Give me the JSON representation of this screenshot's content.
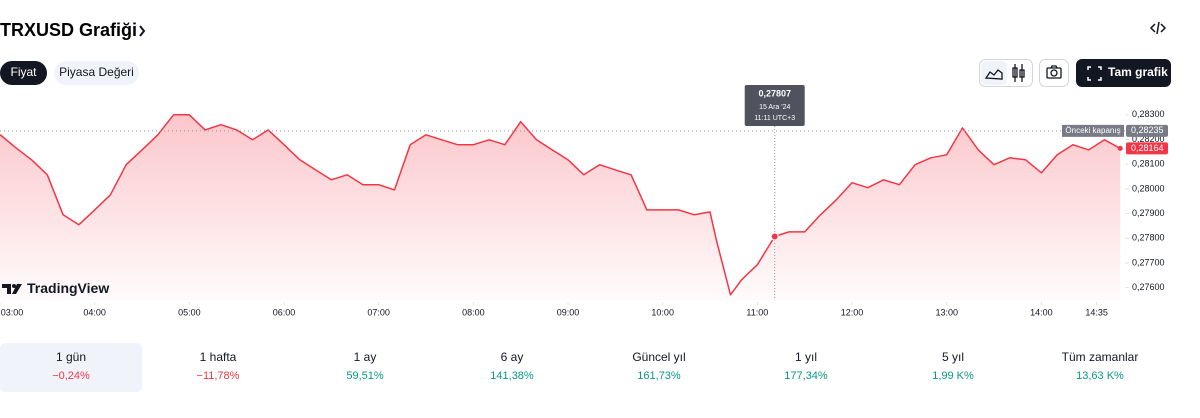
{
  "header": {
    "title": "TRXUSD Grafiği",
    "tabs": [
      "Fiyat",
      "Piyasa Değeri"
    ],
    "full_chart": "Tam grafik"
  },
  "chart_data": {
    "type": "area",
    "color": "#f23645",
    "x": [
      180,
      190,
      200,
      210,
      220,
      230,
      240,
      250,
      260,
      270,
      280,
      290,
      300,
      310,
      320,
      330,
      340,
      350,
      360,
      370,
      380,
      390,
      400,
      410,
      420,
      430,
      440,
      450,
      460,
      470,
      480,
      490,
      500,
      510,
      520,
      530,
      540,
      550,
      560,
      570,
      580,
      590,
      600,
      610,
      620,
      630,
      634,
      638,
      643,
      650,
      660,
      671,
      680,
      690,
      700,
      710,
      720,
      730,
      740,
      750,
      760,
      770,
      780,
      790,
      800,
      810,
      820,
      830,
      840,
      850,
      860,
      870,
      880,
      890
    ],
    "values": [
      0.2822,
      0.28167,
      0.28118,
      0.28057,
      0.27895,
      0.27855,
      0.27915,
      0.27976,
      0.28098,
      0.28158,
      0.28219,
      0.283,
      0.283,
      0.28239,
      0.2826,
      0.28239,
      0.28199,
      0.28239,
      0.28179,
      0.28118,
      0.28077,
      0.28037,
      0.28057,
      0.28017,
      0.28017,
      0.27996,
      0.28179,
      0.28219,
      0.28199,
      0.28179,
      0.28179,
      0.28199,
      0.28179,
      0.28272,
      0.28199,
      0.28158,
      0.28118,
      0.28057,
      0.28098,
      0.28077,
      0.28057,
      0.27915,
      0.27915,
      0.27915,
      0.27895,
      0.27907,
      0.27794,
      0.27693,
      0.27571,
      0.27632,
      0.27693,
      0.27807,
      0.27826,
      0.27826,
      0.27895,
      0.27956,
      0.28025,
      0.28005,
      0.28037,
      0.28017,
      0.28098,
      0.28126,
      0.28138,
      0.28247,
      0.28158,
      0.28098,
      0.28126,
      0.28118,
      0.28065,
      0.28138,
      0.28179,
      0.28158,
      0.28199,
      0.28164
    ],
    "xlim": [
      180,
      893
    ],
    "ylim": [
      0.2755,
      0.2836
    ],
    "xticks": [
      {
        "value": 180,
        "label": "03:00"
      },
      {
        "value": 240,
        "label": "04:00"
      },
      {
        "value": 300,
        "label": "05:00"
      },
      {
        "value": 360,
        "label": "06:00"
      },
      {
        "value": 420,
        "label": "07:00"
      },
      {
        "value": 480,
        "label": "08:00"
      },
      {
        "value": 540,
        "label": "09:00"
      },
      {
        "value": 600,
        "label": "10:00"
      },
      {
        "value": 660,
        "label": "11:00"
      },
      {
        "value": 720,
        "label": "12:00"
      },
      {
        "value": 780,
        "label": "13:00"
      },
      {
        "value": 840,
        "label": "14:00"
      },
      {
        "value": 875,
        "label": "14:35"
      }
    ],
    "yticks": [
      {
        "value": 0.276,
        "label": "0,27600"
      },
      {
        "value": 0.277,
        "label": "0,27700"
      },
      {
        "value": 0.278,
        "label": "0,27800"
      },
      {
        "value": 0.279,
        "label": "0,27900"
      },
      {
        "value": 0.28,
        "label": "0,28000"
      },
      {
        "value": 0.281,
        "label": "0,28100"
      },
      {
        "value": 0.282,
        "label": "0,28200"
      },
      {
        "value": 0.283,
        "label": "0,28300"
      }
    ],
    "previous_close": {
      "label": "Önceki kapanış",
      "value": 0.28235,
      "value_label": "0,28235"
    },
    "last": {
      "value": 0.28164,
      "value_label": "0,28164"
    },
    "tooltip": {
      "x": 671,
      "value": 0.27807,
      "value_label": "0,27807",
      "date": "15 Ara '24",
      "time": "11:11 UTC+3"
    },
    "watermark": "TradingView"
  },
  "periods": [
    {
      "label": "1 gün",
      "change": "−0,24%",
      "color": "#f23645"
    },
    {
      "label": "1 hafta",
      "change": "−11,78%",
      "color": "#f23645"
    },
    {
      "label": "1 ay",
      "change": "59,51%",
      "color": "#089981"
    },
    {
      "label": "6 ay",
      "change": "141,38%",
      "color": "#089981"
    },
    {
      "label": "Güncel yıl",
      "change": "161,73%",
      "color": "#089981"
    },
    {
      "label": "1 yıl",
      "change": "177,34%",
      "color": "#089981"
    },
    {
      "label": "5 yıl",
      "change": "1,99 K%",
      "color": "#089981"
    },
    {
      "label": "Tüm zamanlar",
      "change": "13,63 K%",
      "color": "#089981"
    }
  ]
}
